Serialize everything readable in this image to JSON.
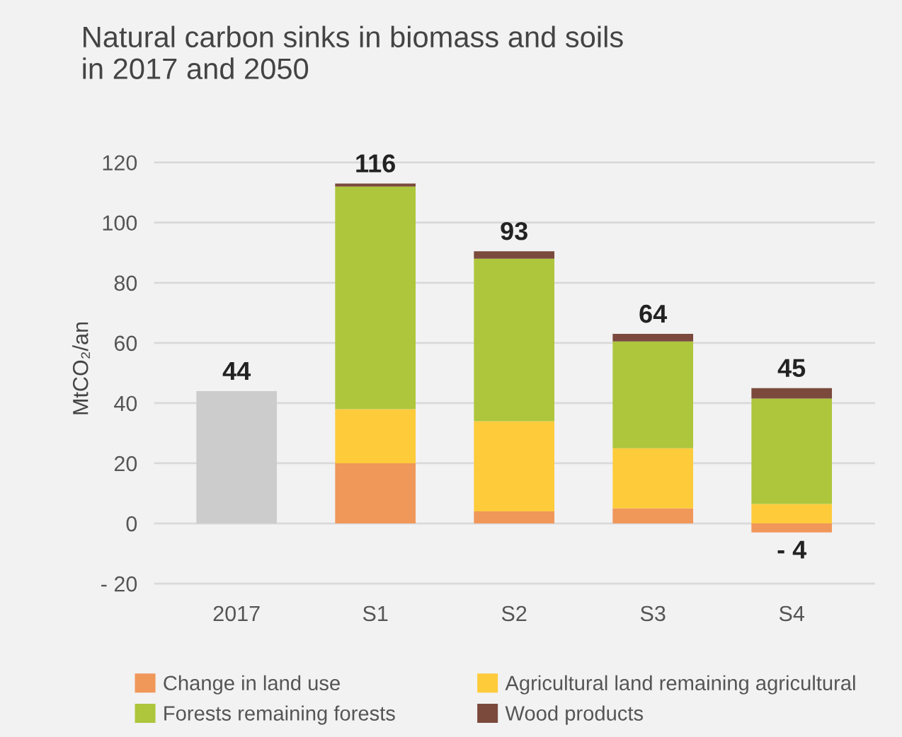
{
  "chart_data": {
    "type": "bar",
    "title": "Natural carbon sinks in biomass and soils\nin 2017 and 2050",
    "ylabel": "MtCO₂/an",
    "categories": [
      "2017",
      "S1",
      "S2",
      "S3",
      "S4"
    ],
    "stacked": true,
    "series": [
      {
        "color": "#cccccc",
        "values": [
          44,
          null,
          null,
          null,
          null
        ]
      },
      {
        "name": "Change in land use",
        "color": "#f0975a",
        "values": [
          null,
          20,
          4,
          5,
          -3
        ]
      },
      {
        "name": "Agricultural land remaining agricultural",
        "color": "#fecb3b",
        "values": [
          null,
          18,
          30,
          20,
          6.5
        ]
      },
      {
        "name": "Forests remaining forests",
        "color": "#adc63c",
        "values": [
          null,
          74,
          54,
          35.5,
          35
        ]
      },
      {
        "name": "Wood products",
        "color": "#7b4a3d",
        "values": [
          null,
          1,
          2.5,
          2.5,
          3.5
        ]
      }
    ],
    "totals": [
      "44",
      "116",
      "93",
      "64",
      "45"
    ],
    "annotations": [
      {
        "text": "- 4",
        "x": "S4",
        "y": -4
      }
    ],
    "ylim": [
      -22,
      125
    ],
    "yticks": [
      {
        "value": -20,
        "label": "- 20"
      },
      0,
      20,
      40,
      60,
      80,
      100,
      120
    ],
    "grid": "y",
    "legend": "bottom"
  }
}
